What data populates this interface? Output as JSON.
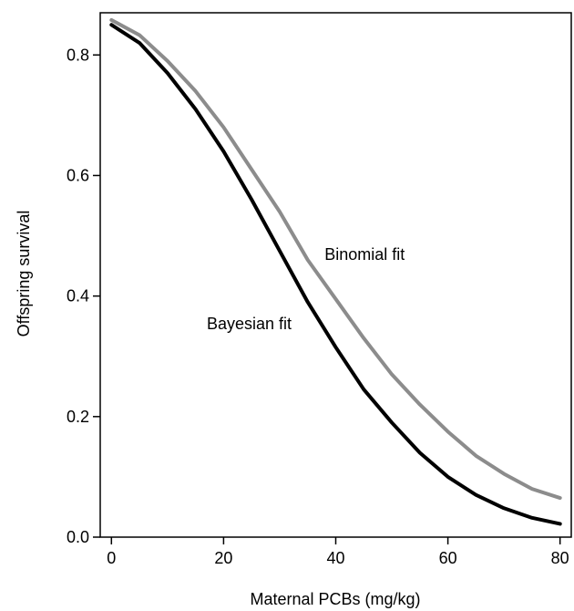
{
  "chart_data": {
    "type": "line",
    "title": "",
    "xlabel": "Maternal PCBs (mg/kg)",
    "ylabel": "Offspring survival",
    "xlim": [
      -2,
      82
    ],
    "ylim": [
      0,
      0.87
    ],
    "xticks": [
      0,
      20,
      40,
      60,
      80
    ],
    "yticks": [
      0.0,
      0.2,
      0.4,
      0.6,
      0.8
    ],
    "xtick_labels": [
      "0",
      "20",
      "40",
      "60",
      "80"
    ],
    "ytick_labels": [
      "0.0",
      "0.2",
      "0.4",
      "0.6",
      "0.8"
    ],
    "grid": false,
    "legend": "none",
    "x": [
      0,
      5,
      10,
      15,
      20,
      25,
      30,
      35,
      40,
      45,
      50,
      55,
      60,
      65,
      70,
      75,
      80
    ],
    "series": [
      {
        "name": "Binomial fit",
        "color": "#8c8c8c",
        "label_at": [
          38,
          0.46
        ],
        "values": [
          0.858,
          0.833,
          0.79,
          0.74,
          0.68,
          0.61,
          0.54,
          0.46,
          0.395,
          0.33,
          0.27,
          0.22,
          0.175,
          0.135,
          0.105,
          0.08,
          0.065
        ]
      },
      {
        "name": "Bayesian fit",
        "color": "#000000",
        "label_at": [
          17,
          0.345
        ],
        "values": [
          0.85,
          0.82,
          0.77,
          0.71,
          0.64,
          0.56,
          0.475,
          0.39,
          0.315,
          0.245,
          0.19,
          0.14,
          0.1,
          0.07,
          0.048,
          0.032,
          0.022
        ]
      }
    ]
  }
}
